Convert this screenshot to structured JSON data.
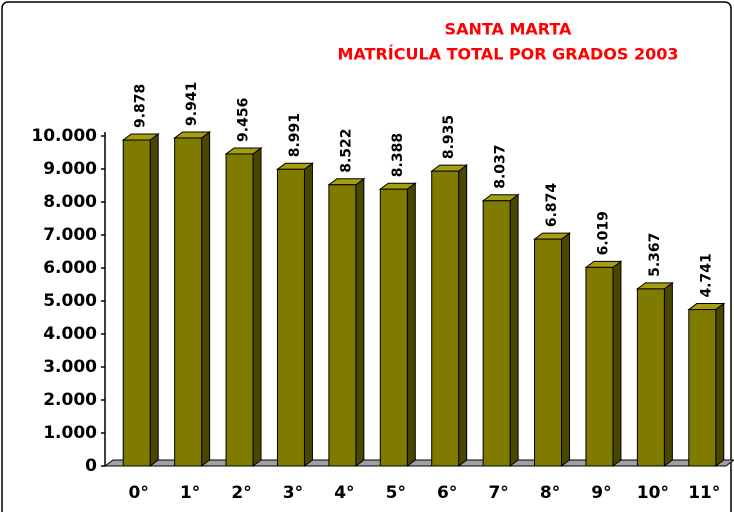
{
  "chart_data": {
    "type": "bar3d",
    "title": "SANTA MARTA",
    "subtitle": "MATRÍCULA TOTAL POR GRADOS 2003",
    "categories": [
      "0°",
      "1°",
      "2°",
      "3°",
      "4°",
      "5°",
      "6°",
      "7°",
      "8°",
      "9°",
      "10°",
      "11°"
    ],
    "values": [
      9878,
      9941,
      9456,
      8991,
      8522,
      8388,
      8935,
      8037,
      6874,
      6019,
      5367,
      4741
    ],
    "value_labels": [
      "9.878",
      "9.941",
      "9.456",
      "8.991",
      "8.522",
      "8.388",
      "8.935",
      "8.037",
      "6.874",
      "6.019",
      "5.367",
      "4.741"
    ],
    "color": "#7f7a00",
    "ylim": [
      0,
      10000
    ],
    "yticks": [
      0,
      {
        "value": 1000,
        "label": "1.000"
      },
      {
        "value": 2000,
        "label": "2.000"
      },
      {
        "value": 3000,
        "label": "3.000"
      },
      {
        "value": 4000,
        "label": "4.000"
      },
      {
        "value": 5000,
        "label": "5.000"
      },
      {
        "value": 6000,
        "label": "6.000"
      },
      {
        "value": 7000,
        "label": "7.000"
      },
      {
        "value": 8000,
        "label": "8.000"
      },
      {
        "value": 9000,
        "label": "9.000"
      },
      {
        "value": 10000,
        "label": "10.000"
      }
    ],
    "grid": false
  }
}
